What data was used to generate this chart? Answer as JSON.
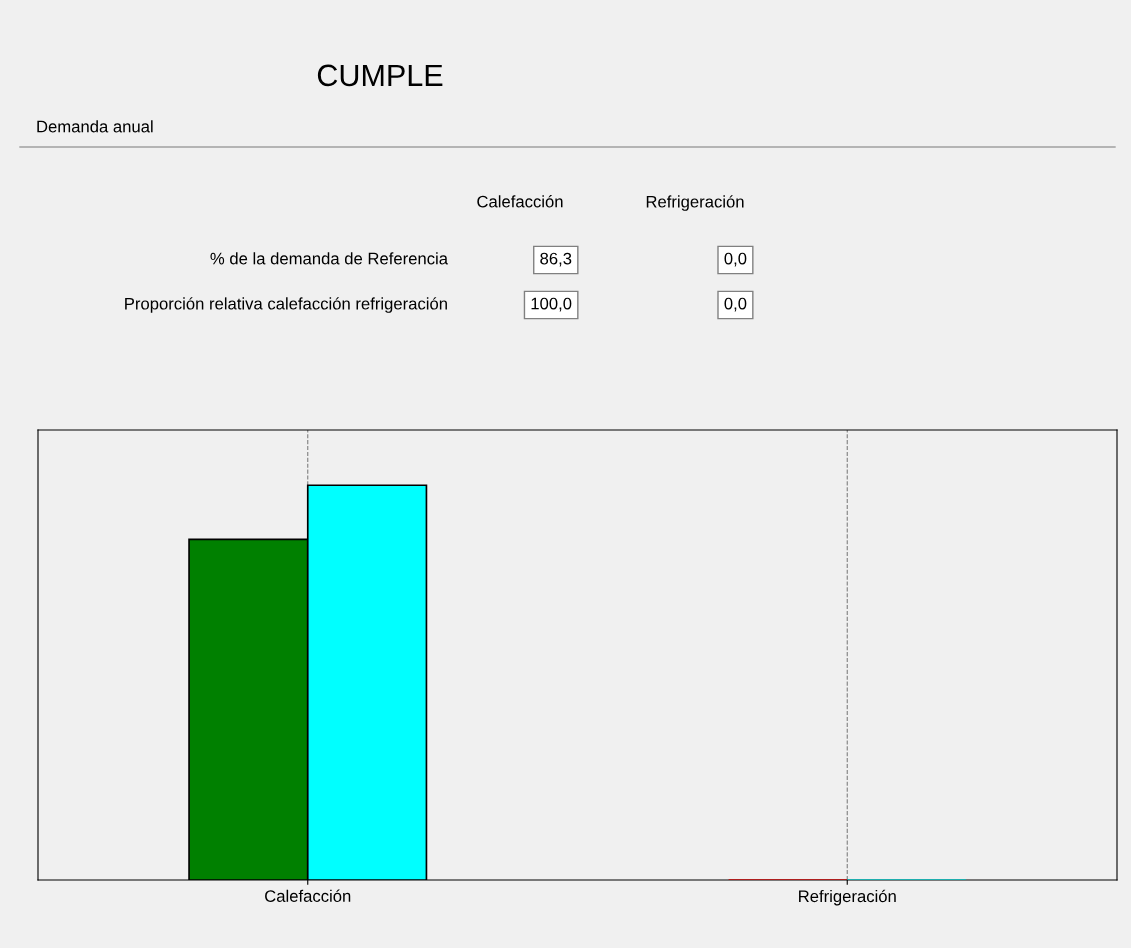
{
  "chart_data": {
    "type": "bar",
    "title": "CUMPLE",
    "subtitle": "Demanda anual",
    "annotations": [
      "% de la demanda de Referencia",
      "Proporción relativa calefacción refrigeración"
    ],
    "categories": [
      "Calefacción",
      "Refrigeración"
    ],
    "series": [
      {
        "colors": [
          "#008000",
          "#c00000"
        ],
        "values": [
          86.3,
          0
        ],
        "value_labels": [
          "86,3",
          "0,0"
        ]
      },
      {
        "colors": [
          "#00ffff",
          "#00c0c0"
        ],
        "values": [
          100,
          0
        ],
        "value_labels": [
          "100,0",
          "0,0"
        ]
      }
    ],
    "ylim": [
      0,
      114
    ],
    "grid": "x",
    "tick_labels": "x",
    "legend": false
  }
}
